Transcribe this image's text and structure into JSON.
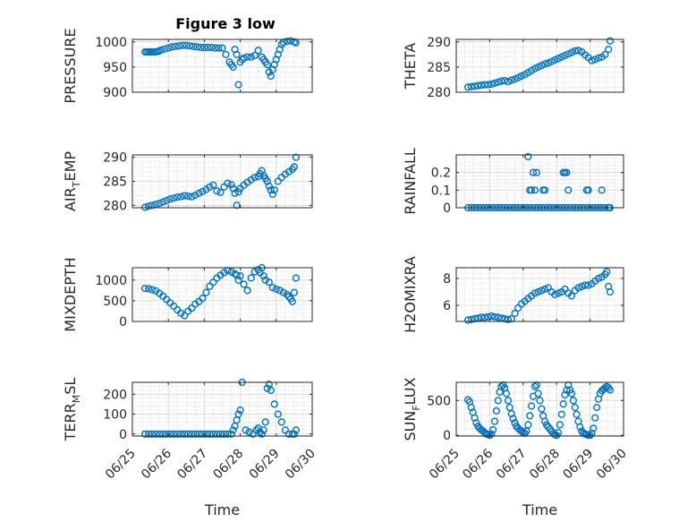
{
  "figure_title": "Figure 3 low",
  "chart_data": [
    {
      "type": "scatter",
      "id": "pressure",
      "ylabel": "PRESSURE",
      "xlabel": "",
      "xlim": [
        "06/25",
        "06/30"
      ],
      "ylim": [
        900,
        1005
      ],
      "yticks": [
        900,
        950,
        1000
      ],
      "xticks": [
        "06/25",
        "06/26",
        "06/27",
        "06/28",
        "06/29",
        "06/30"
      ],
      "grid": true,
      "minor_grid": true,
      "show_xticklabels": false,
      "color": "#0072BD",
      "x_day_fraction": [
        0.35,
        0.4,
        0.45,
        0.5,
        0.55,
        0.6,
        0.65,
        0.7,
        0.75,
        0.8,
        0.9,
        1.0,
        1.1,
        1.2,
        1.3,
        1.4,
        1.5,
        1.6,
        1.7,
        1.8,
        1.9,
        2.0,
        2.1,
        2.2,
        2.3,
        2.4,
        2.5,
        2.6,
        2.7,
        2.75,
        2.8,
        2.85,
        2.9,
        2.95,
        3.0,
        3.05,
        3.1,
        3.2,
        3.3,
        3.4,
        3.5,
        3.6,
        3.65,
        3.7,
        3.75,
        3.8,
        3.85,
        3.9,
        3.95,
        4.0,
        4.05,
        4.1,
        4.15,
        4.2,
        4.3,
        4.4,
        4.5,
        4.55
      ],
      "values": [
        980,
        980,
        980,
        980,
        980,
        980,
        980,
        981,
        982,
        984,
        986,
        988,
        990,
        991,
        992,
        993,
        993,
        992,
        991,
        990,
        989,
        989,
        989,
        989,
        988,
        988,
        988,
        975,
        960,
        955,
        950,
        985,
        975,
        915,
        960,
        965,
        968,
        970,
        970,
        973,
        983,
        970,
        965,
        960,
        955,
        940,
        932,
        945,
        955,
        965,
        975,
        985,
        995,
        999,
        1001,
        1002,
        1000,
        998
      ]
    },
    {
      "type": "scatter",
      "id": "theta",
      "ylabel": "THETA",
      "xlabel": "",
      "xlim": [
        "06/25",
        "06/30"
      ],
      "ylim": [
        280,
        290.5
      ],
      "yticks": [
        280,
        285,
        290
      ],
      "xticks": [
        "06/25",
        "06/26",
        "06/27",
        "06/28",
        "06/29",
        "06/30"
      ],
      "grid": true,
      "minor_grid": true,
      "show_xticklabels": false,
      "color": "#0072BD",
      "x_day_fraction": [
        0.35,
        0.45,
        0.55,
        0.65,
        0.75,
        0.85,
        0.95,
        1.05,
        1.15,
        1.25,
        1.35,
        1.45,
        1.55,
        1.65,
        1.75,
        1.85,
        1.95,
        2.05,
        2.15,
        2.25,
        2.35,
        2.45,
        2.55,
        2.65,
        2.75,
        2.85,
        2.95,
        3.05,
        3.15,
        3.25,
        3.35,
        3.45,
        3.55,
        3.65,
        3.75,
        3.85,
        3.95,
        4.05,
        4.15,
        4.25,
        4.35,
        4.45,
        4.55,
        4.6
      ],
      "values": [
        281.0,
        281.1,
        281.2,
        281.3,
        281.4,
        281.5,
        281.5,
        281.6,
        281.8,
        282.0,
        282.2,
        282.3,
        282.1,
        282.4,
        282.6,
        282.9,
        283.2,
        283.5,
        283.9,
        284.3,
        284.7,
        285.0,
        285.3,
        285.6,
        285.8,
        286.1,
        286.4,
        286.7,
        287.0,
        287.3,
        287.6,
        287.9,
        288.2,
        288.3,
        288.0,
        287.4,
        286.9,
        286.3,
        286.5,
        286.8,
        287.0,
        287.5,
        288.5,
        290.2
      ]
    },
    {
      "type": "scatter",
      "id": "air_temp",
      "ylabel": "AIR_TEMP",
      "xlabel": "",
      "xlim": [
        "06/25",
        "06/30"
      ],
      "ylim": [
        279.5,
        290.5
      ],
      "yticks": [
        280,
        285,
        290
      ],
      "xticks": [
        "06/25",
        "06/26",
        "06/27",
        "06/28",
        "06/29",
        "06/30"
      ],
      "grid": true,
      "minor_grid": true,
      "show_xticklabels": false,
      "color": "#0072BD",
      "x_day_fraction": [
        0.35,
        0.45,
        0.55,
        0.65,
        0.75,
        0.85,
        0.95,
        1.05,
        1.15,
        1.25,
        1.35,
        1.45,
        1.55,
        1.65,
        1.75,
        1.85,
        1.95,
        2.05,
        2.15,
        2.25,
        2.35,
        2.45,
        2.55,
        2.65,
        2.75,
        2.8,
        2.85,
        2.9,
        2.95,
        3.0,
        3.1,
        3.2,
        3.3,
        3.4,
        3.5,
        3.55,
        3.6,
        3.65,
        3.7,
        3.75,
        3.8,
        3.85,
        3.9,
        3.95,
        4.05,
        4.15,
        4.25,
        4.35,
        4.45,
        4.5,
        4.55
      ],
      "values": [
        279.6,
        279.8,
        280.0,
        280.2,
        280.4,
        280.7,
        281.0,
        281.3,
        281.5,
        281.7,
        281.8,
        282.0,
        281.9,
        281.8,
        282.1,
        282.5,
        282.9,
        283.3,
        283.8,
        284.2,
        283.0,
        282.7,
        283.8,
        284.6,
        284.3,
        283.5,
        282.5,
        280.0,
        282.8,
        283.5,
        284.2,
        284.8,
        285.3,
        285.8,
        286.0,
        286.6,
        287.2,
        286.2,
        285.6,
        285.0,
        284.0,
        283.2,
        282.3,
        283.2,
        285.0,
        285.8,
        286.5,
        287.0,
        287.5,
        288.0,
        290.0
      ]
    },
    {
      "type": "scatter",
      "id": "rainfall",
      "ylabel": "RAINFALL",
      "xlabel": "",
      "xlim": [
        "06/25",
        "06/30"
      ],
      "ylim": [
        0,
        0.3
      ],
      "yticks": [
        0,
        0.1,
        0.2
      ],
      "xticks": [
        "06/25",
        "06/26",
        "06/27",
        "06/28",
        "06/29",
        "06/30"
      ],
      "grid": true,
      "minor_grid": true,
      "show_xticklabels": false,
      "color": "#0072BD",
      "x_day_fraction": [
        0.35,
        0.45,
        0.55,
        0.65,
        0.75,
        0.85,
        0.95,
        1.05,
        1.15,
        1.25,
        1.35,
        1.45,
        1.55,
        1.65,
        1.75,
        1.85,
        1.95,
        2.05,
        2.15,
        2.25,
        2.35,
        2.45,
        2.55,
        2.65,
        2.75,
        2.85,
        2.95,
        3.05,
        3.15,
        3.25,
        3.35,
        3.45,
        3.55,
        3.65,
        3.75,
        3.85,
        3.95,
        4.05,
        4.15,
        4.25,
        4.35,
        4.45,
        4.55,
        4.6,
        2.15,
        2.2,
        2.25,
        2.3,
        2.35,
        2.4,
        2.6,
        2.65,
        3.2,
        3.25,
        3.3,
        3.35,
        3.9,
        3.95,
        4.35
      ],
      "values": [
        0,
        0,
        0,
        0,
        0,
        0,
        0,
        0,
        0,
        0,
        0,
        0,
        0,
        0,
        0,
        0,
        0,
        0,
        0,
        0,
        0,
        0,
        0,
        0,
        0,
        0,
        0,
        0,
        0,
        0,
        0,
        0,
        0,
        0,
        0,
        0,
        0,
        0,
        0,
        0,
        0,
        0,
        0,
        0,
        0.29,
        0.1,
        0.1,
        0.2,
        0.1,
        0.2,
        0.1,
        0.1,
        0.2,
        0.2,
        0.2,
        0.1,
        0.1,
        0.1,
        0.1
      ]
    },
    {
      "type": "scatter",
      "id": "mixdepth",
      "ylabel": "MIXDEPTH",
      "xlabel": "",
      "xlim": [
        "06/25",
        "06/30"
      ],
      "ylim": [
        0,
        1300
      ],
      "yticks": [
        0,
        500,
        1000
      ],
      "xticks": [
        "06/25",
        "06/26",
        "06/27",
        "06/28",
        "06/29",
        "06/30"
      ],
      "grid": true,
      "minor_grid": true,
      "show_xticklabels": false,
      "color": "#0072BD",
      "x_day_fraction": [
        0.35,
        0.45,
        0.55,
        0.65,
        0.75,
        0.85,
        0.95,
        1.05,
        1.15,
        1.25,
        1.35,
        1.45,
        1.55,
        1.65,
        1.75,
        1.85,
        1.95,
        2.05,
        2.15,
        2.25,
        2.35,
        2.45,
        2.55,
        2.65,
        2.75,
        2.85,
        2.9,
        2.95,
        3.0,
        3.1,
        3.2,
        3.3,
        3.4,
        3.5,
        3.55,
        3.6,
        3.65,
        3.7,
        3.8,
        3.9,
        4.0,
        4.1,
        4.2,
        4.3,
        4.35,
        4.4,
        4.45,
        4.5,
        4.55
      ],
      "values": [
        800,
        790,
        770,
        740,
        680,
        610,
        530,
        450,
        370,
        280,
        200,
        140,
        250,
        320,
        420,
        480,
        560,
        700,
        850,
        950,
        1050,
        1120,
        1180,
        1230,
        1200,
        1150,
        1120,
        1000,
        1100,
        900,
        750,
        1050,
        1200,
        1250,
        1180,
        1300,
        1100,
        1000,
        950,
        820,
        780,
        750,
        700,
        650,
        600,
        550,
        480,
        700,
        1050
      ]
    },
    {
      "type": "scatter",
      "id": "h2omixra",
      "ylabel": "H2OMIXRA",
      "xlabel": "",
      "xlim": [
        "06/25",
        "06/30"
      ],
      "ylim": [
        4.8,
        8.8
      ],
      "yticks": [
        6,
        8
      ],
      "xticks": [
        "06/25",
        "06/26",
        "06/27",
        "06/28",
        "06/29",
        "06/30"
      ],
      "grid": true,
      "minor_grid": true,
      "show_xticklabels": false,
      "color": "#0072BD",
      "x_day_fraction": [
        0.35,
        0.45,
        0.55,
        0.65,
        0.75,
        0.85,
        0.95,
        1.05,
        1.15,
        1.25,
        1.35,
        1.45,
        1.55,
        1.65,
        1.75,
        1.85,
        1.95,
        2.05,
        2.15,
        2.25,
        2.35,
        2.45,
        2.55,
        2.65,
        2.75,
        2.85,
        2.95,
        3.05,
        3.15,
        3.25,
        3.35,
        3.45,
        3.55,
        3.65,
        3.75,
        3.85,
        3.95,
        4.05,
        4.15,
        4.25,
        4.35,
        4.45,
        4.5,
        4.55,
        4.6
      ],
      "values": [
        4.9,
        4.95,
        5.0,
        5.05,
        5.1,
        5.1,
        5.15,
        5.2,
        5.15,
        5.1,
        5.05,
        5.0,
        4.95,
        5.0,
        5.4,
        5.8,
        6.1,
        6.3,
        6.5,
        6.7,
        6.9,
        7.0,
        7.1,
        7.2,
        7.3,
        7.0,
        6.8,
        6.9,
        7.0,
        7.2,
        6.9,
        6.7,
        7.1,
        7.3,
        7.4,
        7.5,
        7.5,
        7.6,
        7.8,
        8.0,
        8.1,
        8.3,
        8.5,
        7.4,
        7.0
      ]
    },
    {
      "type": "scatter",
      "id": "terr_msl",
      "ylabel": "TERR_MSL",
      "xlabel": "Time",
      "xlim": [
        "06/25",
        "06/30"
      ],
      "ylim": [
        -10,
        260
      ],
      "yticks": [
        0,
        100,
        200
      ],
      "xticks": [
        "06/25",
        "06/26",
        "06/27",
        "06/28",
        "06/29",
        "06/30"
      ],
      "grid": true,
      "minor_grid": true,
      "show_xticklabels": true,
      "color": "#0072BD",
      "x_day_fraction": [
        0.35,
        0.45,
        0.55,
        0.65,
        0.75,
        0.85,
        0.95,
        1.05,
        1.15,
        1.25,
        1.35,
        1.45,
        1.55,
        1.65,
        1.75,
        1.85,
        1.95,
        2.05,
        2.15,
        2.25,
        2.35,
        2.45,
        2.55,
        2.65,
        2.75,
        2.8,
        2.85,
        2.9,
        2.95,
        3.0,
        3.05,
        3.15,
        3.25,
        3.35,
        3.45,
        3.5,
        3.55,
        3.6,
        3.65,
        3.7,
        3.75,
        3.8,
        3.85,
        3.95,
        4.05,
        4.15,
        4.25,
        4.35,
        4.45,
        4.5,
        4.55
      ],
      "values": [
        0,
        0,
        0,
        0,
        0,
        0,
        0,
        0,
        0,
        0,
        0,
        0,
        0,
        0,
        0,
        0,
        0,
        0,
        0,
        0,
        0,
        0,
        0,
        0,
        0,
        20,
        40,
        70,
        100,
        120,
        260,
        20,
        10,
        0,
        20,
        30,
        10,
        0,
        20,
        60,
        230,
        250,
        220,
        150,
        100,
        60,
        20,
        0,
        0,
        0,
        20
      ]
    },
    {
      "type": "scatter",
      "id": "sun_flux",
      "ylabel": "SUN_FLUX",
      "xlabel": "Time",
      "xlim": [
        "06/25",
        "06/30"
      ],
      "ylim": [
        -10,
        760
      ],
      "yticks": [
        0,
        500
      ],
      "xticks": [
        "06/25",
        "06/26",
        "06/27",
        "06/28",
        "06/29",
        "06/30"
      ],
      "grid": true,
      "minor_grid": true,
      "show_xticklabels": true,
      "color": "#0072BD",
      "x_day_fraction": [
        0.35,
        0.4,
        0.45,
        0.5,
        0.55,
        0.6,
        0.65,
        0.7,
        0.75,
        0.8,
        0.85,
        0.9,
        0.95,
        1.0,
        1.05,
        1.1,
        1.15,
        1.2,
        1.25,
        1.3,
        1.35,
        1.4,
        1.45,
        1.5,
        1.55,
        1.6,
        1.65,
        1.7,
        1.75,
        1.8,
        1.85,
        1.9,
        1.95,
        2.0,
        2.05,
        2.1,
        2.15,
        2.2,
        2.25,
        2.3,
        2.35,
        2.4,
        2.45,
        2.5,
        2.55,
        2.6,
        2.65,
        2.7,
        2.75,
        2.8,
        2.85,
        2.9,
        2.95,
        3.0,
        3.05,
        3.1,
        3.15,
        3.2,
        3.25,
        3.3,
        3.35,
        3.4,
        3.45,
        3.5,
        3.55,
        3.6,
        3.65,
        3.7,
        3.75,
        3.8,
        3.85,
        3.9,
        3.95,
        4.0,
        4.05,
        4.1,
        4.15,
        4.2,
        4.25,
        4.3,
        4.35,
        4.4,
        4.45,
        4.5,
        4.55,
        4.6
      ],
      "values": [
        510,
        480,
        400,
        330,
        250,
        180,
        130,
        100,
        80,
        60,
        40,
        20,
        10,
        0,
        20,
        80,
        200,
        350,
        500,
        620,
        700,
        720,
        680,
        600,
        500,
        400,
        310,
        240,
        180,
        130,
        100,
        80,
        60,
        40,
        30,
        60,
        150,
        280,
        420,
        560,
        700,
        720,
        600,
        500,
        380,
        280,
        200,
        150,
        120,
        90,
        60,
        30,
        10,
        0,
        40,
        150,
        300,
        450,
        580,
        650,
        720,
        650,
        600,
        500,
        400,
        300,
        200,
        120,
        60,
        30,
        20,
        10,
        0,
        0,
        30,
        100,
        250,
        400,
        520,
        600,
        640,
        660,
        680,
        700,
        680,
        650
      ]
    }
  ]
}
